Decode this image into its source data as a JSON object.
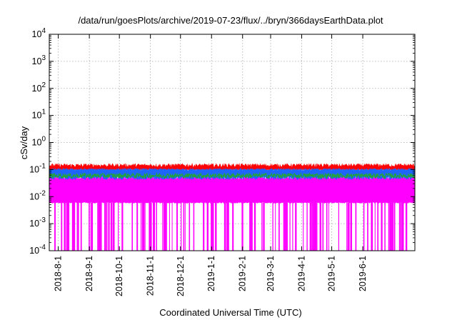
{
  "chart_data": {
    "type": "line",
    "title": "/data/run/goesPlots/archive/2019-07-23/flux/../bryn/366daysEarthData.plot",
    "xlabel": "Coordinated Universal Time (UTC)",
    "ylabel": "cSv/day",
    "y_scale": "log",
    "ylim": [
      0.0001,
      10000
    ],
    "xlim": [
      "2018-07-23",
      "2019-07-23"
    ],
    "grid": true,
    "x_tick_labels": [
      "2018-8-1",
      "2018-9-1",
      "2018-10-1",
      "2018-11-1",
      "2018-12-1",
      "2019-1-1",
      "2019-2-1",
      "2019-3-1",
      "2019-4-1",
      "2019-5-1",
      "2019-6-1"
    ],
    "x_tick_dates": [
      "2018-08-01",
      "2018-09-01",
      "2018-10-01",
      "2018-11-01",
      "2018-12-01",
      "2019-01-01",
      "2019-02-01",
      "2019-03-01",
      "2019-04-01",
      "2019-05-01",
      "2019-06-01"
    ],
    "y_tick_labels": [
      {
        "base": "10",
        "exp": "-4",
        "value": 0.0001
      },
      {
        "base": "10",
        "exp": "-3",
        "value": 0.001
      },
      {
        "base": "10",
        "exp": "-2",
        "value": 0.01
      },
      {
        "base": "10",
        "exp": "-1",
        "value": 0.1
      },
      {
        "base": "10",
        "exp": "0",
        "value": 1
      },
      {
        "base": "10",
        "exp": "1",
        "value": 10
      },
      {
        "base": "10",
        "exp": "2",
        "value": 100
      },
      {
        "base": "10",
        "exp": "3",
        "value": 1000
      },
      {
        "base": "10",
        "exp": "4",
        "value": 10000
      }
    ],
    "series": [
      {
        "color": "#ff00ff",
        "band_low": 0.006,
        "band_high": 0.05,
        "dropout_value": 0.0001
      },
      {
        "color": "#1e64ff",
        "band_low": 0.05,
        "band_high": 0.1
      },
      {
        "color": "#22a33a",
        "level": 0.06
      },
      {
        "color": "#ff0000",
        "band_low": 0.1,
        "band_high": 0.15
      }
    ]
  }
}
